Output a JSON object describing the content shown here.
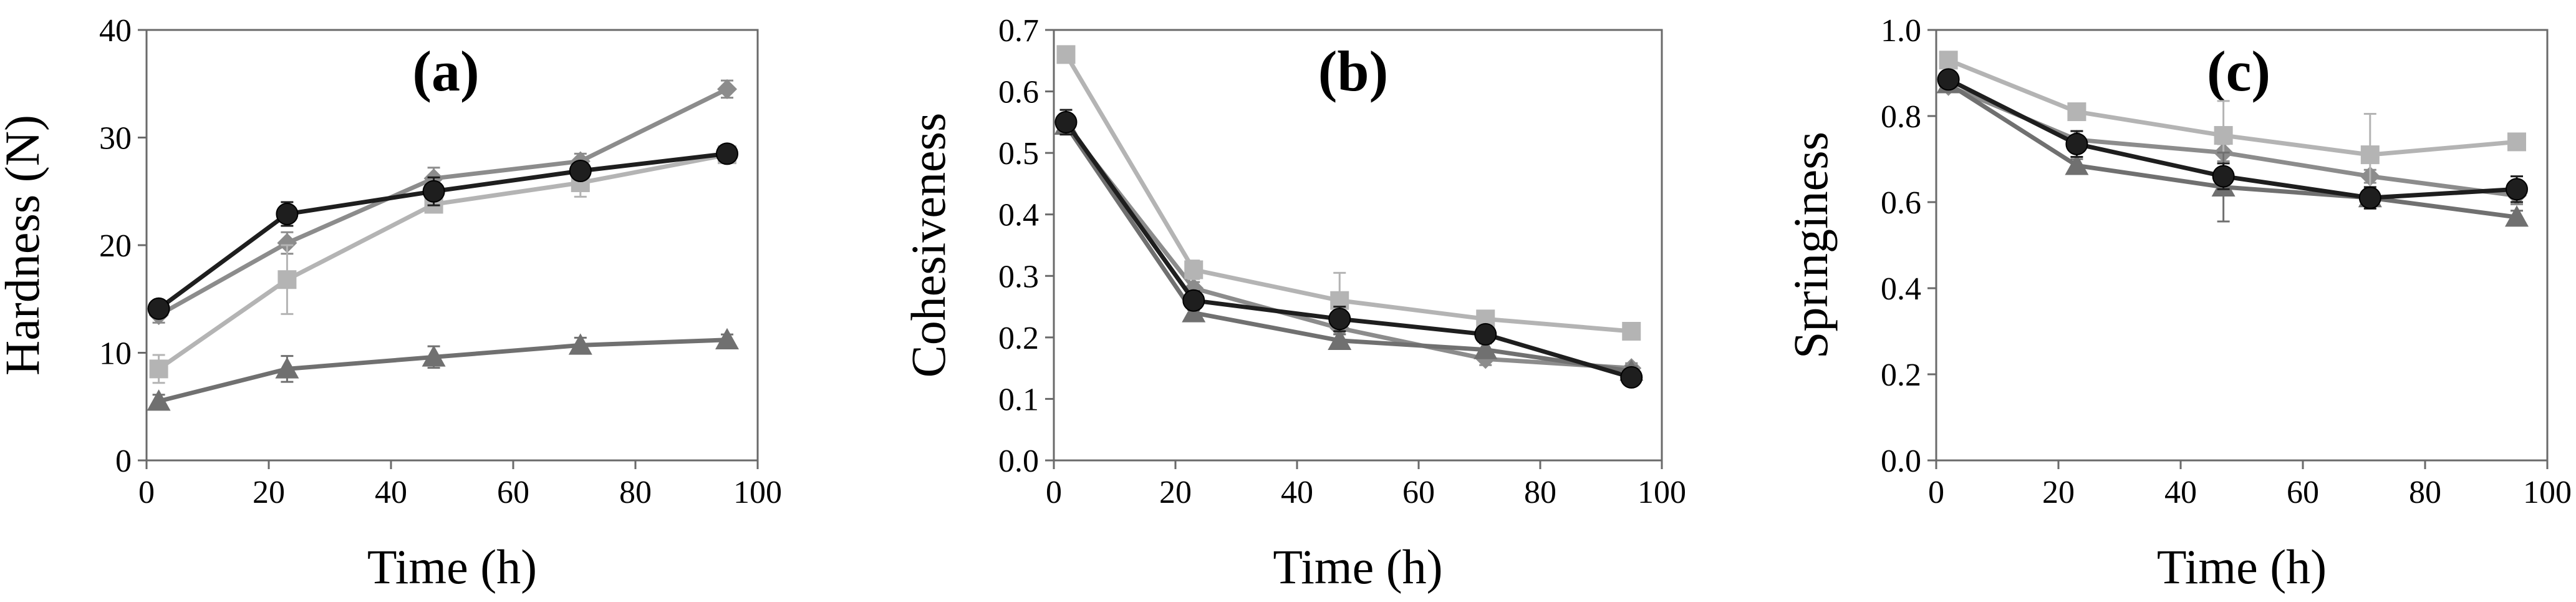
{
  "chart_data": [
    {
      "type": "line",
      "panel_label": "(a)",
      "xlabel": "Time (h)",
      "ylabel": "Hardness (N)",
      "xlim": [
        0,
        100
      ],
      "ylim": [
        0,
        40
      ],
      "xticks": [
        "0",
        "20",
        "40",
        "60",
        "80",
        "100"
      ],
      "yticks": [
        "0",
        "10",
        "20",
        "30",
        "40"
      ],
      "x": [
        2,
        23,
        47,
        71,
        95
      ],
      "series": [
        {
          "name": "series-diamond",
          "marker": "diamond",
          "color": "#8c8c8c",
          "values": [
            13.5,
            20.2,
            26.2,
            27.8,
            34.5
          ],
          "errors": [
            0.7,
            1.0,
            1.0,
            0.7,
            0.8
          ]
        },
        {
          "name": "series-square",
          "marker": "square",
          "color": "#b4b4b4",
          "values": [
            8.5,
            16.8,
            23.8,
            25.8,
            28.4
          ],
          "errors": [
            1.3,
            3.2,
            0.7,
            1.3,
            0.7
          ]
        },
        {
          "name": "series-triangle",
          "marker": "triangle",
          "color": "#707070",
          "values": [
            5.5,
            8.5,
            9.6,
            10.7,
            11.2
          ],
          "errors": [
            0.6,
            1.2,
            1.0,
            0.7,
            0.5
          ]
        },
        {
          "name": "series-circle",
          "marker": "circle",
          "color": "#1e1e1e",
          "values": [
            14.1,
            22.9,
            25.0,
            26.9,
            28.5
          ],
          "errors": [
            0.5,
            1.1,
            1.3,
            0.7,
            0.5
          ]
        }
      ]
    },
    {
      "type": "line",
      "panel_label": "(b)",
      "xlabel": "Time (h)",
      "ylabel": "Cohesiveness",
      "xlim": [
        0,
        100
      ],
      "ylim": [
        0,
        0.7
      ],
      "xticks": [
        "0",
        "20",
        "40",
        "60",
        "80",
        "100"
      ],
      "yticks": [
        "0.0",
        "0.1",
        "0.2",
        "0.3",
        "0.4",
        "0.5",
        "0.6",
        "0.7"
      ],
      "x": [
        2,
        23,
        47,
        71,
        95
      ],
      "series": [
        {
          "name": "series-diamond",
          "marker": "diamond",
          "color": "#8c8c8c",
          "values": [
            0.545,
            0.28,
            0.215,
            0.165,
            0.15
          ],
          "errors": [
            0.015,
            0.01,
            0.01,
            0.01,
            0.008
          ]
        },
        {
          "name": "series-square",
          "marker": "square",
          "color": "#b4b4b4",
          "values": [
            0.66,
            0.31,
            0.26,
            0.23,
            0.21
          ],
          "errors": [
            0.01,
            0.015,
            0.045,
            0.01,
            0.01
          ]
        },
        {
          "name": "series-triangle",
          "marker": "triangle",
          "color": "#707070",
          "values": [
            0.545,
            0.24,
            0.195,
            0.18,
            0.145
          ],
          "errors": [
            0.01,
            0.01,
            0.01,
            0.01,
            0.008
          ]
        },
        {
          "name": "series-circle",
          "marker": "circle",
          "color": "#1e1e1e",
          "values": [
            0.55,
            0.26,
            0.23,
            0.205,
            0.135
          ],
          "errors": [
            0.02,
            0.015,
            0.02,
            0.01,
            0.008
          ]
        }
      ]
    },
    {
      "type": "line",
      "panel_label": "(c)",
      "xlabel": "Time (h)",
      "ylabel": "Springiness",
      "xlim": [
        0,
        100
      ],
      "ylim": [
        0,
        1
      ],
      "xticks": [
        "0",
        "20",
        "40",
        "60",
        "80",
        "100"
      ],
      "yticks": [
        "0.0",
        "0.2",
        "0.4",
        "0.6",
        "0.8",
        "1.0"
      ],
      "x": [
        2,
        23,
        47,
        71,
        95
      ],
      "series": [
        {
          "name": "series-diamond",
          "marker": "diamond",
          "color": "#8c8c8c",
          "values": [
            0.87,
            0.745,
            0.715,
            0.66,
            0.615
          ],
          "errors": [
            0.01,
            0.02,
            0.02,
            0.015,
            0.02
          ]
        },
        {
          "name": "series-square",
          "marker": "square",
          "color": "#b4b4b4",
          "values": [
            0.93,
            0.81,
            0.755,
            0.71,
            0.74
          ],
          "errors": [
            0.01,
            0.015,
            0.08,
            0.095,
            0.015
          ]
        },
        {
          "name": "series-triangle",
          "marker": "triangle",
          "color": "#707070",
          "values": [
            0.875,
            0.685,
            0.635,
            0.61,
            0.565
          ],
          "errors": [
            0.01,
            0.015,
            0.08,
            0.02,
            0.015
          ]
        },
        {
          "name": "series-circle",
          "marker": "circle",
          "color": "#1e1e1e",
          "values": [
            0.885,
            0.735,
            0.66,
            0.61,
            0.63
          ],
          "errors": [
            0.01,
            0.03,
            0.03,
            0.025,
            0.03
          ]
        }
      ]
    }
  ]
}
